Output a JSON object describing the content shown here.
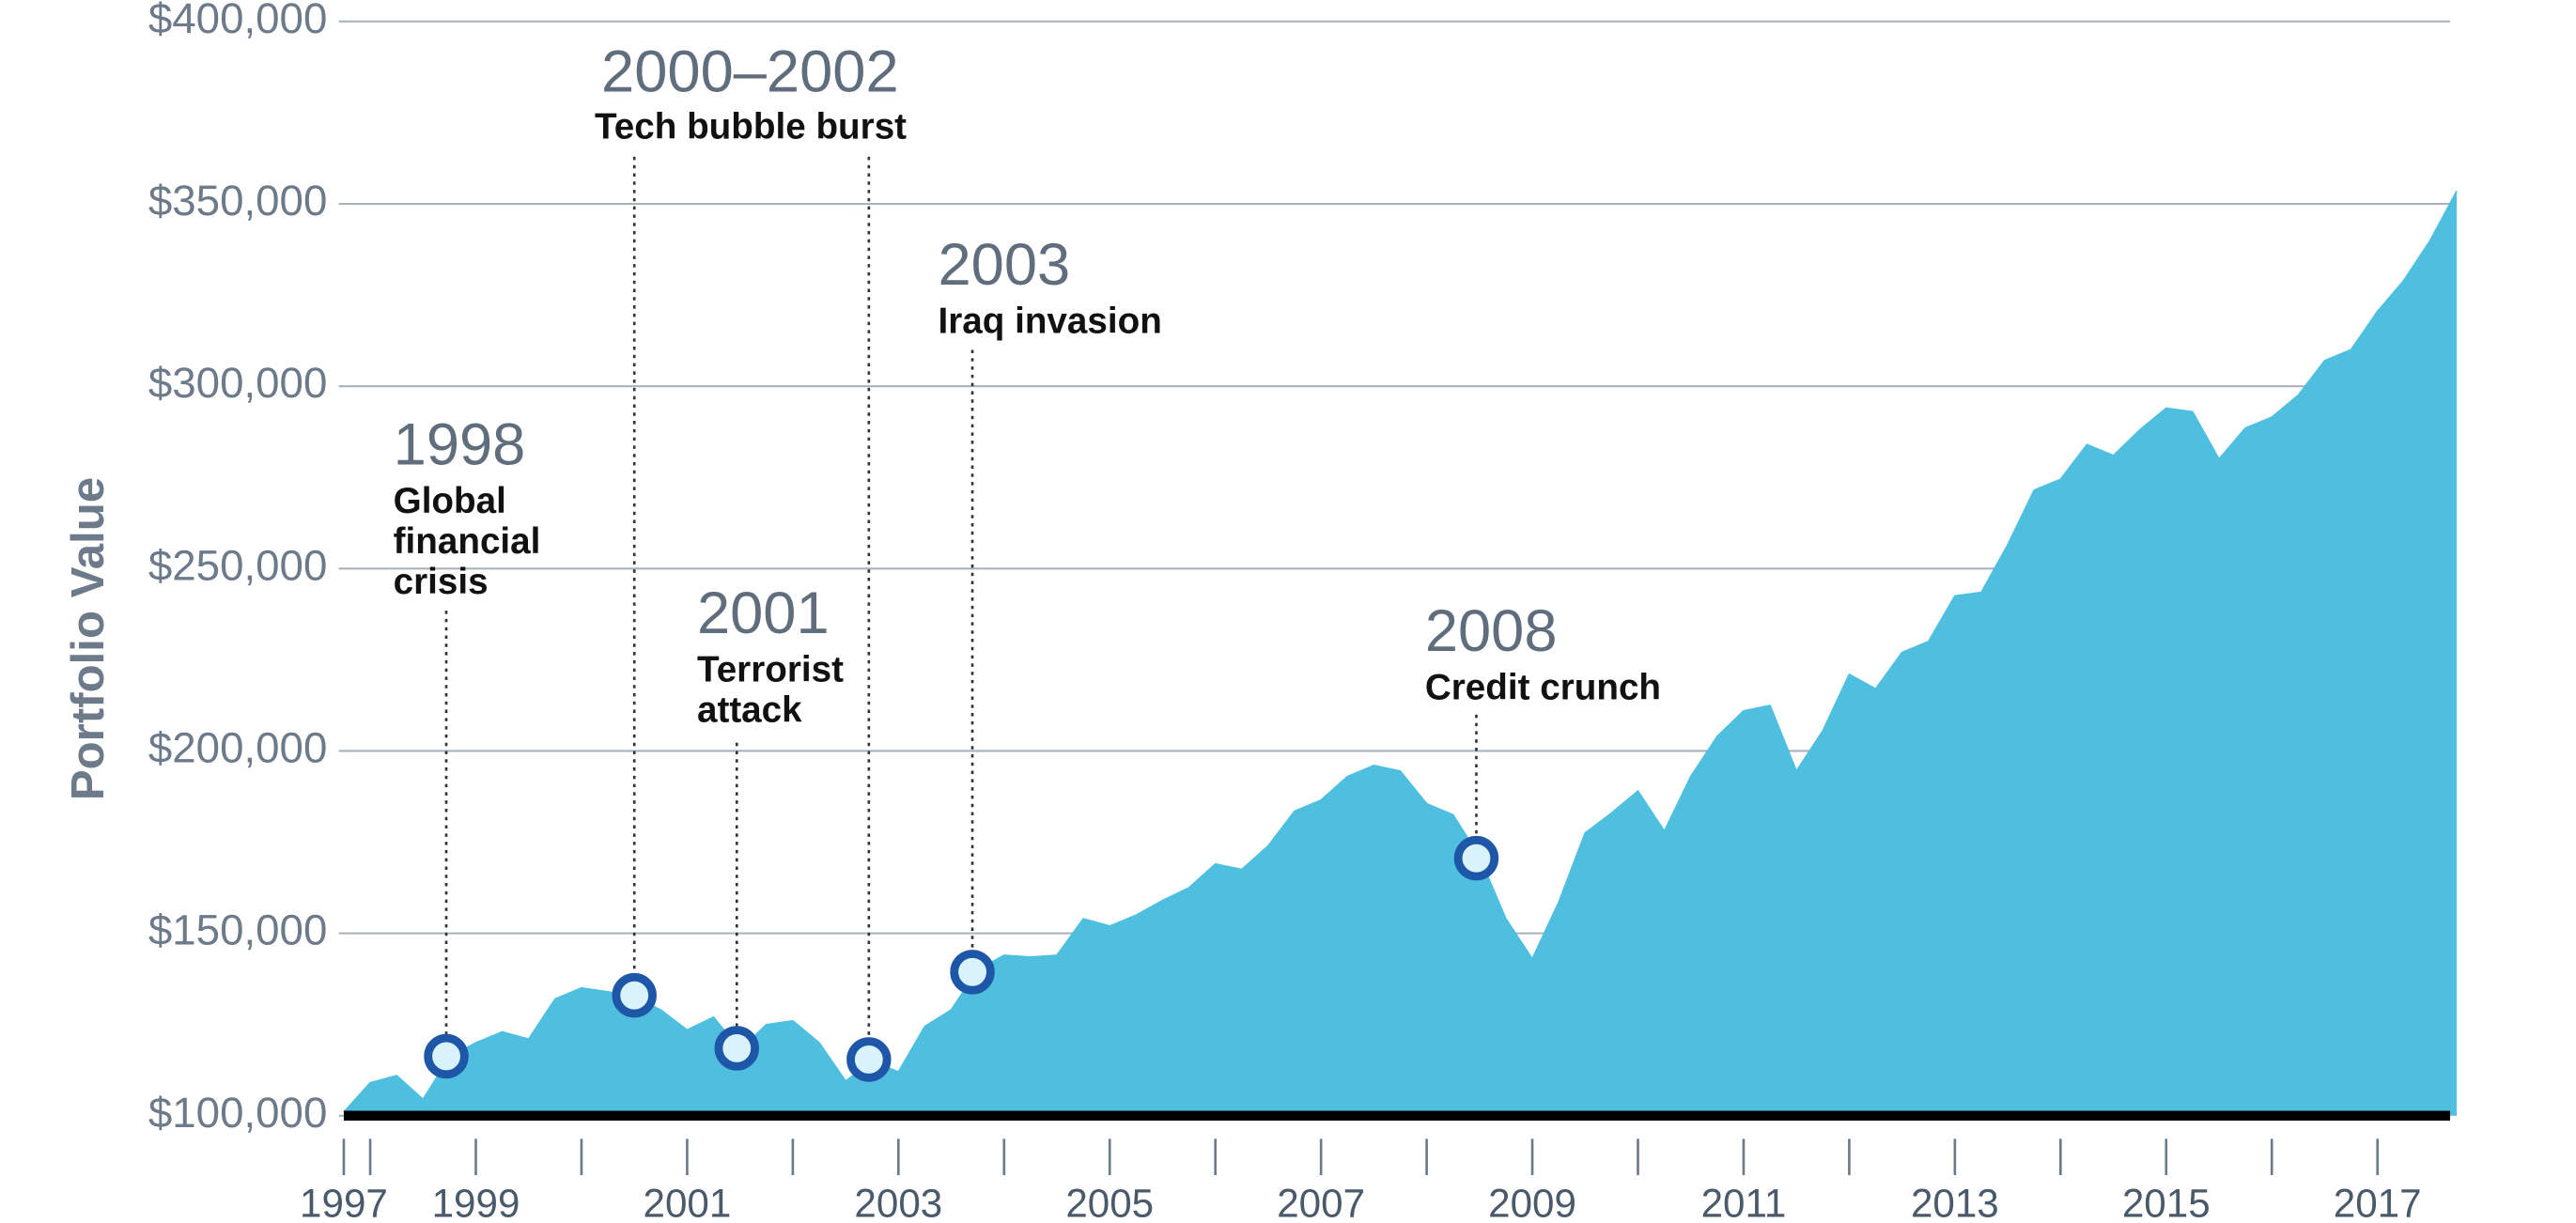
{
  "chart_data": {
    "type": "area",
    "y_label": "Portfolio Value",
    "color": "#4fbfe0",
    "grid": true,
    "xlim": [
      1997.75,
      2017.75
    ],
    "xticks": [
      {
        "value": 1997.75,
        "label": "1997"
      },
      1999,
      2001,
      2003,
      2005,
      2007,
      2009,
      2011,
      2013,
      2015,
      2017
    ],
    "xminor_ticks": [
      1998,
      2000,
      2002,
      2004,
      2006,
      2008,
      2010,
      2012,
      2014,
      2016
    ],
    "ylim": [
      100000,
      400000
    ],
    "yticks": [
      {
        "value": 100000,
        "label": "$100,000"
      },
      {
        "value": 150000,
        "label": "$150,000"
      },
      {
        "value": 200000,
        "label": "$200,000"
      },
      {
        "value": 250000,
        "label": "$250,000"
      },
      {
        "value": 300000,
        "label": "$300,000"
      },
      {
        "value": 350000,
        "label": "$350,000"
      },
      {
        "value": 400000,
        "label": "$400,000"
      }
    ],
    "x": [
      1997.75,
      1998,
      1998.25,
      1998.5,
      1998.75,
      1999,
      1999.25,
      1999.5,
      1999.75,
      2000,
      2000.25,
      2000.5,
      2000.75,
      2001,
      2001.25,
      2001.5,
      2001.75,
      2002,
      2002.25,
      2002.5,
      2002.75,
      2003,
      2003.25,
      2003.5,
      2003.75,
      2004,
      2004.25,
      2004.5,
      2004.75,
      2005,
      2005.25,
      2005.5,
      2005.75,
      2006,
      2006.25,
      2006.5,
      2006.75,
      2007,
      2007.25,
      2007.5,
      2007.75,
      2008,
      2008.25,
      2008.5,
      2008.75,
      2009,
      2009.25,
      2009.5,
      2009.75,
      2010,
      2010.25,
      2010.5,
      2010.75,
      2011,
      2011.25,
      2011.5,
      2011.75,
      2012,
      2012.25,
      2012.5,
      2012.75,
      2013,
      2013.25,
      2013.5,
      2013.75,
      2014,
      2014.25,
      2014.5,
      2014.75,
      2015,
      2015.25,
      2015.5,
      2015.75,
      2016,
      2016.25,
      2016.5,
      2016.75,
      2017,
      2017.25,
      2017.5,
      2017.75
    ],
    "values": [
      101000,
      109000,
      111000,
      104500,
      116000,
      120000,
      123000,
      121000,
      132000,
      135000,
      134000,
      132500,
      129000,
      123500,
      127000,
      118000,
      125000,
      126000,
      120000,
      109500,
      115000,
      112000,
      124500,
      129000,
      140000,
      144000,
      143500,
      144000,
      154000,
      152000,
      155000,
      159000,
      162500,
      169000,
      167500,
      174000,
      183500,
      186500,
      193000,
      196000,
      194500,
      185500,
      182500,
      171000,
      154000,
      143000,
      158500,
      177500,
      183000,
      189000,
      178000,
      193000,
      204000,
      211000,
      212500,
      194500,
      205500,
      221000,
      217000,
      227000,
      230000,
      242500,
      243500,
      256500,
      271500,
      274500,
      284000,
      281000,
      288000,
      294000,
      293000,
      280000,
      288500,
      291500,
      297500,
      307000,
      310000,
      320500,
      329000,
      340000,
      353500
    ],
    "markers": [
      {
        "x": 1998.72,
        "value": 116300
      },
      {
        "x": 2000.5,
        "value": 133000
      },
      {
        "x": 2001.47,
        "value": 118500
      },
      {
        "x": 2002.72,
        "value": 115400
      },
      {
        "x": 2003.7,
        "value": 139400
      },
      {
        "x": 2008.47,
        "value": 170600
      }
    ],
    "annotations": [
      {
        "year": "1998",
        "lines": [
          "Global",
          "financial",
          "crisis"
        ]
      },
      {
        "year": "2000–2002",
        "lines": [
          "Tech bubble burst"
        ]
      },
      {
        "year": "2001",
        "lines": [
          "Terrorist",
          "attack"
        ]
      },
      {
        "year": "2003",
        "lines": [
          "Iraq invasion"
        ]
      },
      {
        "year": "2008",
        "lines": [
          "Credit crunch"
        ]
      }
    ]
  }
}
